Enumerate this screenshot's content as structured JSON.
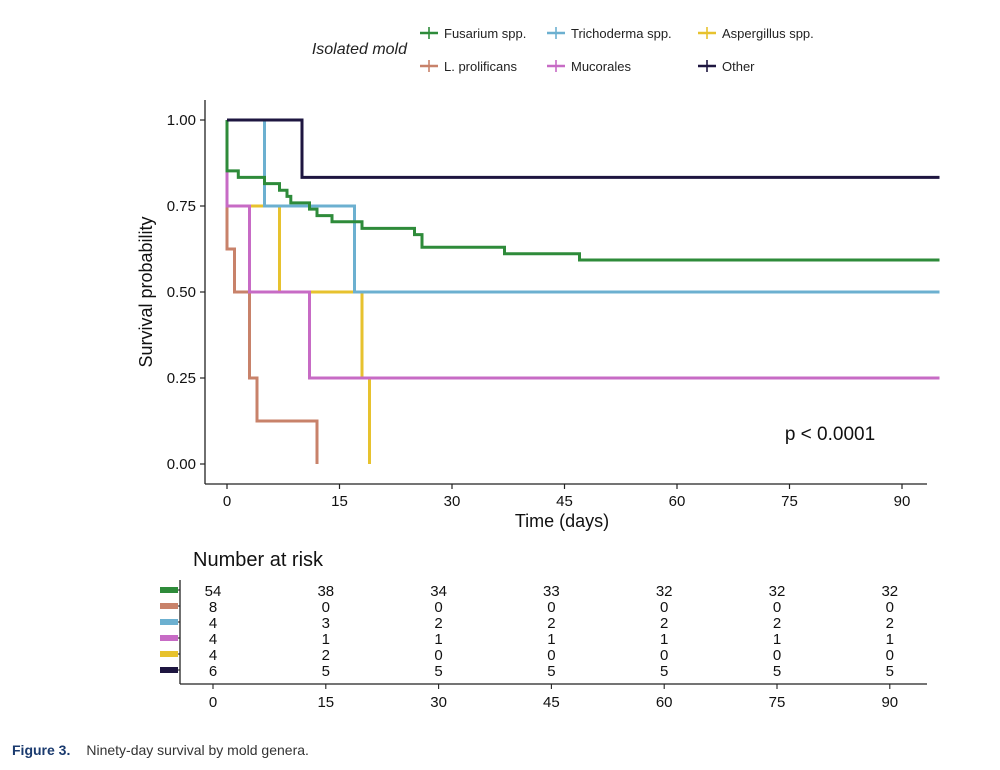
{
  "chart_data": {
    "type": "line",
    "subtype": "kaplan-meier",
    "xlabel": "Time (days)",
    "ylabel": "Survival probability",
    "xlim": [
      -3,
      95
    ],
    "ylim": [
      0,
      1
    ],
    "x_ticks": [
      0,
      15,
      30,
      45,
      60,
      75,
      90
    ],
    "y_ticks": [
      0,
      0.25,
      0.5,
      0.75,
      1
    ],
    "y_tick_labels": [
      "0.00",
      "0.25",
      "0.50",
      "0.75",
      "1.00"
    ],
    "legend": {
      "title": "Isolated mold",
      "placement": "top"
    },
    "p_value": "p < 0.0001",
    "series": [
      {
        "name": "Fusarium spp.",
        "color": "#2e8b3a",
        "points": [
          [
            0,
            1
          ],
          [
            0,
            0.852
          ],
          [
            1.5,
            0.852
          ],
          [
            1.5,
            0.833
          ],
          [
            5,
            0.833
          ],
          [
            5,
            0.815
          ],
          [
            7,
            0.815
          ],
          [
            7,
            0.796
          ],
          [
            8,
            0.796
          ],
          [
            8,
            0.778
          ],
          [
            8.5,
            0.778
          ],
          [
            8.5,
            0.759
          ],
          [
            11,
            0.759
          ],
          [
            11,
            0.741
          ],
          [
            12,
            0.741
          ],
          [
            12,
            0.722
          ],
          [
            14,
            0.722
          ],
          [
            14,
            0.704
          ],
          [
            18,
            0.704
          ],
          [
            18,
            0.685
          ],
          [
            25,
            0.685
          ],
          [
            25,
            0.667
          ],
          [
            26,
            0.667
          ],
          [
            26,
            0.63
          ],
          [
            37,
            0.63
          ],
          [
            37,
            0.611
          ],
          [
            47,
            0.611
          ],
          [
            47,
            0.593
          ],
          [
            95,
            0.593
          ]
        ]
      },
      {
        "name": "L. prolificans",
        "color": "#c8826a",
        "points": [
          [
            0,
            1
          ],
          [
            0,
            0.625
          ],
          [
            1,
            0.625
          ],
          [
            1,
            0.5
          ],
          [
            3,
            0.5
          ],
          [
            3,
            0.25
          ],
          [
            4,
            0.25
          ],
          [
            4,
            0.125
          ],
          [
            12,
            0.125
          ],
          [
            12,
            0
          ]
        ]
      },
      {
        "name": "Trichoderma spp.",
        "color": "#6cb0d0",
        "points": [
          [
            0,
            1
          ],
          [
            5,
            1
          ],
          [
            5,
            0.75
          ],
          [
            17,
            0.75
          ],
          [
            17,
            0.5
          ],
          [
            95,
            0.5
          ]
        ]
      },
      {
        "name": "Mucorales",
        "color": "#c76bc5",
        "points": [
          [
            0,
            1
          ],
          [
            0,
            0.75
          ],
          [
            3,
            0.75
          ],
          [
            3,
            0.5
          ],
          [
            11,
            0.5
          ],
          [
            11,
            0.25
          ],
          [
            95,
            0.25
          ]
        ]
      },
      {
        "name": "Aspergillus spp.",
        "color": "#e7c22e",
        "points": [
          [
            0,
            1
          ],
          [
            0,
            0.75
          ],
          [
            7,
            0.75
          ],
          [
            7,
            0.5
          ],
          [
            18,
            0.5
          ],
          [
            18,
            0.25
          ],
          [
            19,
            0.25
          ],
          [
            19,
            0
          ]
        ]
      },
      {
        "name": "Other",
        "color": "#1e1640",
        "points": [
          [
            0,
            1
          ],
          [
            10,
            1
          ],
          [
            10,
            0.833
          ],
          [
            95,
            0.833
          ]
        ]
      }
    ],
    "risk_table": {
      "title": "Number at risk",
      "times": [
        0,
        15,
        30,
        45,
        60,
        75,
        90
      ],
      "rows": [
        {
          "name": "Fusarium spp.",
          "color": "#2e8b3a",
          "values": [
            54,
            38,
            34,
            33,
            32,
            32,
            32
          ]
        },
        {
          "name": "L. prolificans",
          "color": "#c8826a",
          "values": [
            8,
            0,
            0,
            0,
            0,
            0,
            0
          ]
        },
        {
          "name": "Trichoderma spp.",
          "color": "#6cb0d0",
          "values": [
            4,
            3,
            2,
            2,
            2,
            2,
            2
          ]
        },
        {
          "name": "Mucorales",
          "color": "#c76bc5",
          "values": [
            4,
            1,
            1,
            1,
            1,
            1,
            1
          ]
        },
        {
          "name": "Aspergillus spp.",
          "color": "#e7c22e",
          "values": [
            4,
            2,
            0,
            0,
            0,
            0,
            0
          ]
        },
        {
          "name": "Other",
          "color": "#1e1640",
          "values": [
            6,
            5,
            5,
            5,
            5,
            5,
            5
          ]
        }
      ]
    }
  },
  "caption": {
    "label": "Figure 3.",
    "text": "Ninety-day survival by mold genera."
  }
}
